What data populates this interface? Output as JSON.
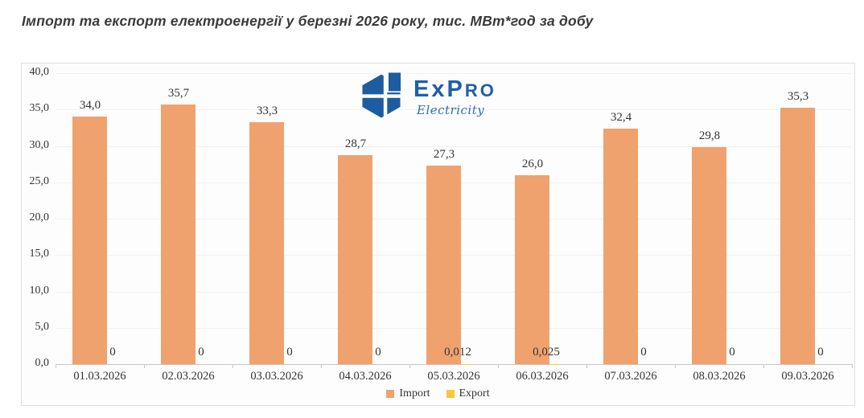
{
  "page": {
    "title": "Імпорт та експорт електроенергії у березні 2026 року, тис. МВт*год за добу"
  },
  "logo": {
    "brand": "ExPro",
    "brand_ex": "Ex",
    "brand_p": "P",
    "brand_ro": "ro",
    "tagline": "Electricity"
  },
  "colors": {
    "import": "#EFA26E",
    "export": "#FBC540",
    "logo_blue": "#1d5c9e",
    "brand_text": "#1e5fa8",
    "axis": "#c6c6c6",
    "gridline": "#f1f1f1",
    "text": "#333333"
  },
  "chart_data": {
    "type": "bar",
    "title": "Імпорт та експорт електроенергії у березні 2026 року, тис. МВт*год за добу",
    "categories": [
      "01.03.2026",
      "02.03.2026",
      "03.03.2026",
      "04.03.2026",
      "05.03.2026",
      "06.03.2026",
      "07.03.2026",
      "08.03.2026",
      "09.03.2026"
    ],
    "series": [
      {
        "name": "Import",
        "color": "#EFA26E",
        "values": [
          34.0,
          35.7,
          33.3,
          28.7,
          27.3,
          26.0,
          32.4,
          29.8,
          35.3
        ],
        "labels": [
          "34,0",
          "35,7",
          "33,3",
          "28,7",
          "27,3",
          "26,0",
          "32,4",
          "29,8",
          "35,3"
        ]
      },
      {
        "name": "Export",
        "color": "#FBC540",
        "values": [
          0,
          0,
          0,
          0,
          0.012,
          0.025,
          0,
          0,
          0
        ],
        "labels": [
          "0",
          "0",
          "0",
          "0",
          "0,012",
          "0,025",
          "0",
          "0",
          "0"
        ]
      }
    ],
    "xlabel": "",
    "ylabel": "",
    "ylim": [
      0,
      40
    ],
    "yticks": {
      "values": [
        0,
        5,
        10,
        15,
        20,
        25,
        30,
        35,
        40
      ],
      "labels": [
        "0,0",
        "5,0",
        "10,0",
        "15,0",
        "20,0",
        "25,0",
        "30,0",
        "35,0",
        "40,0"
      ]
    },
    "grid": "horizontal",
    "legend_position": "bottom"
  }
}
